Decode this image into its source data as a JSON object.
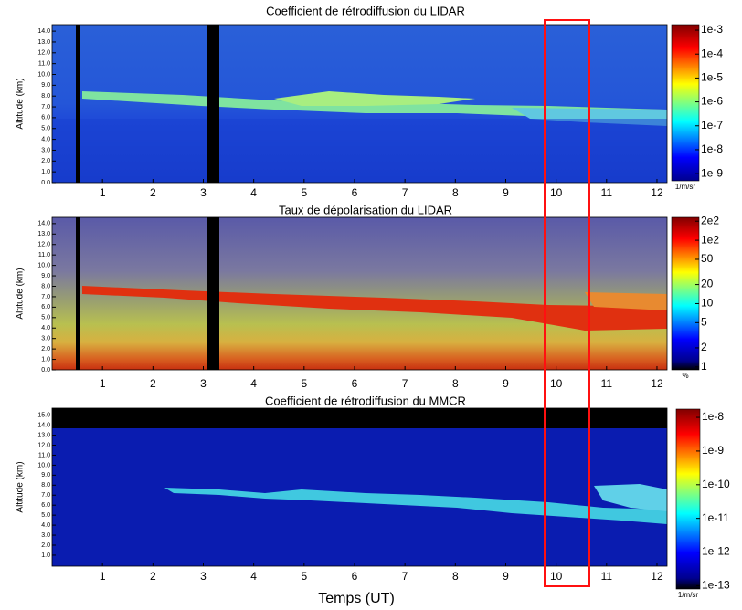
{
  "chart_data": [
    {
      "type": "heatmap",
      "title": "Coefficient de rétrodiffusion du LIDAR",
      "ylabel": "Altitude (km)",
      "xlim": [
        0,
        12.2
      ],
      "xticks": [
        1,
        2,
        3,
        4,
        5,
        6,
        7,
        8,
        9,
        10,
        11,
        12
      ],
      "ylim": [
        0,
        14.6
      ],
      "yticks": [
        {
          "value": 0,
          "label": "0.0"
        },
        {
          "value": 1,
          "label": "1.0"
        },
        {
          "value": 2,
          "label": "2.0"
        },
        {
          "value": 3,
          "label": "3.0"
        },
        {
          "value": 4,
          "label": "4.0"
        },
        {
          "value": 5,
          "label": "5.0"
        },
        {
          "value": 6,
          "label": "6.0"
        },
        {
          "value": 7,
          "label": "7.0"
        },
        {
          "value": 8,
          "label": "8.0"
        },
        {
          "value": 9,
          "label": "9.0"
        },
        {
          "value": 10,
          "label": "10.0"
        },
        {
          "value": 11,
          "label": "11.0"
        },
        {
          "value": 12,
          "label": "12.0"
        },
        {
          "value": 13,
          "label": "13.0"
        },
        {
          "value": 14,
          "label": "14.0"
        }
      ],
      "colorbar_scale": "log",
      "clim": [
        5e-10,
        0.0017
      ],
      "cticks": [
        {
          "value": 0.001,
          "label": "1e-3"
        },
        {
          "value": 0.0001,
          "label": "1e-4"
        },
        {
          "value": 1e-05,
          "label": "1e-5"
        },
        {
          "value": 1e-06,
          "label": "1e-6"
        },
        {
          "value": 1e-07,
          "label": "1e-7"
        },
        {
          "value": 1e-08,
          "label": "1e-8"
        },
        {
          "value": 1e-09,
          "label": "1e-9"
        }
      ],
      "colorbar_unit": "1/m/sr"
    },
    {
      "type": "heatmap",
      "title": "Taux de dépolarisation du LIDAR",
      "ylabel": "Altitude (km)",
      "xlim": [
        0,
        12.2
      ],
      "xticks": [
        1,
        2,
        3,
        4,
        5,
        6,
        7,
        8,
        9,
        10,
        11,
        12
      ],
      "ylim": [
        0,
        14.6
      ],
      "yticks": [
        {
          "value": 0,
          "label": "0.0"
        },
        {
          "value": 1,
          "label": "1.0"
        },
        {
          "value": 2,
          "label": "2.0"
        },
        {
          "value": 3,
          "label": "3.0"
        },
        {
          "value": 4,
          "label": "4.0"
        },
        {
          "value": 5,
          "label": "5.0"
        },
        {
          "value": 6,
          "label": "6.0"
        },
        {
          "value": 7,
          "label": "7.0"
        },
        {
          "value": 8,
          "label": "8.0"
        },
        {
          "value": 9,
          "label": "9.0"
        },
        {
          "value": 10,
          "label": "10.0"
        },
        {
          "value": 11,
          "label": "11.0"
        },
        {
          "value": 12,
          "label": "12.0"
        },
        {
          "value": 13,
          "label": "13.0"
        },
        {
          "value": 14,
          "label": "14.0"
        }
      ],
      "colorbar_scale": "log",
      "clim": [
        0.9,
        230
      ],
      "cticks": [
        {
          "value": 200,
          "label": "2e2"
        },
        {
          "value": 100,
          "label": "1e2"
        },
        50,
        20,
        10,
        5,
        2,
        1
      ],
      "colorbar_unit": "%"
    },
    {
      "type": "heatmap",
      "title": "Coefficient de rétrodiffusion du MMCR",
      "ylabel": "Altitude (km)",
      "xlabel": "Temps (UT)",
      "xlim": [
        0,
        12.2
      ],
      "xticks": [
        1,
        2,
        3,
        4,
        5,
        6,
        7,
        8,
        9,
        10,
        11,
        12
      ],
      "ylim": [
        -0.1,
        15.7
      ],
      "yticks": [
        {
          "value": 1,
          "label": "1.0"
        },
        {
          "value": 2,
          "label": "2.0"
        },
        {
          "value": 3,
          "label": "3.0"
        },
        {
          "value": 4,
          "label": "4.0"
        },
        {
          "value": 5,
          "label": "5.0"
        },
        {
          "value": 6,
          "label": "6.0"
        },
        {
          "value": 7,
          "label": "7.0"
        },
        {
          "value": 8,
          "label": "8.0"
        },
        {
          "value": 9,
          "label": "9.0"
        },
        {
          "value": 10,
          "label": "10.0"
        },
        {
          "value": 11,
          "label": "11.0"
        },
        {
          "value": 12,
          "label": "12.0"
        },
        {
          "value": 13,
          "label": "13.0"
        },
        {
          "value": 14,
          "label": "14.0"
        },
        {
          "value": 15,
          "label": "15.0"
        }
      ],
      "colorbar_scale": "log",
      "clim": [
        8e-14,
        1.76e-08
      ],
      "cticks": [
        {
          "value": 1e-08,
          "label": "1e-8"
        },
        {
          "value": 1e-09,
          "label": "1e-9"
        },
        {
          "value": 1e-10,
          "label": "1e-10"
        },
        {
          "value": 1e-11,
          "label": "1e-11"
        },
        {
          "value": 1e-12,
          "label": "1e-12"
        },
        {
          "value": 1e-13,
          "label": "1e-13"
        }
      ],
      "colorbar_unit": "1/m/sr"
    }
  ]
}
